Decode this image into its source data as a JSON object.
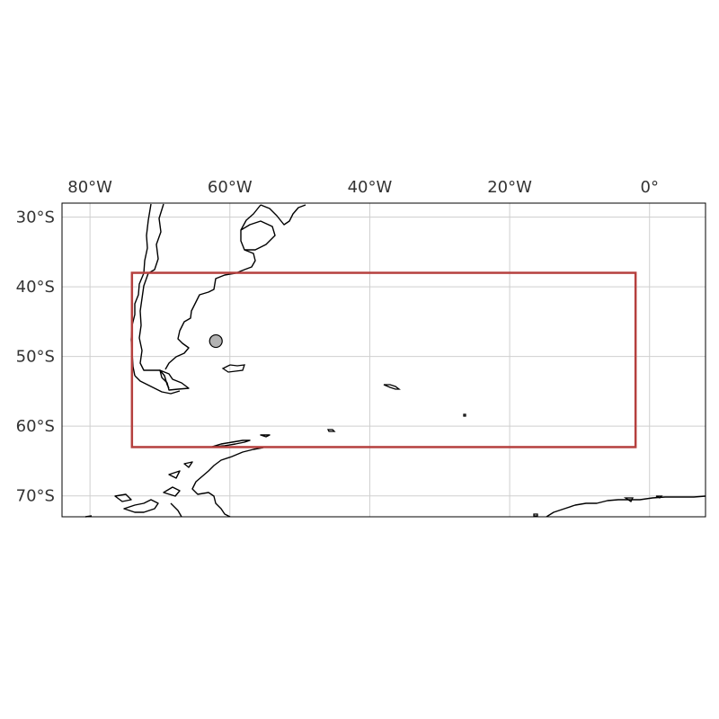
{
  "map": {
    "projection": "PlateCarree",
    "extent": {
      "lon": [
        -84.0,
        8.0
      ],
      "lat": [
        -73.0,
        -28.0
      ]
    },
    "gridlines": true,
    "lon_ticks": [
      {
        "value": -80,
        "label": "80°W"
      },
      {
        "value": -60,
        "label": "60°W"
      },
      {
        "value": -40,
        "label": "40°W"
      },
      {
        "value": -20,
        "label": "20°W"
      },
      {
        "value": 0,
        "label": "0°"
      }
    ],
    "lat_ticks": [
      {
        "value": -30,
        "label": "30°S"
      },
      {
        "value": -40,
        "label": "40°S"
      },
      {
        "value": -50,
        "label": "50°S"
      },
      {
        "value": -60,
        "label": "60°S"
      },
      {
        "value": -70,
        "label": "70°S"
      }
    ],
    "region_box": {
      "lon": [
        -74.0,
        -2.0
      ],
      "lat": [
        -63.0,
        -38.0
      ],
      "color": "#b5403e"
    },
    "marker": {
      "lon": -62.0,
      "lat": -47.8,
      "fill": "#b3b3b3",
      "stroke": "#000000"
    },
    "colors": {
      "coastline": "#000000",
      "gridline": "#cfcfcf",
      "tick_text": "#333333"
    }
  }
}
